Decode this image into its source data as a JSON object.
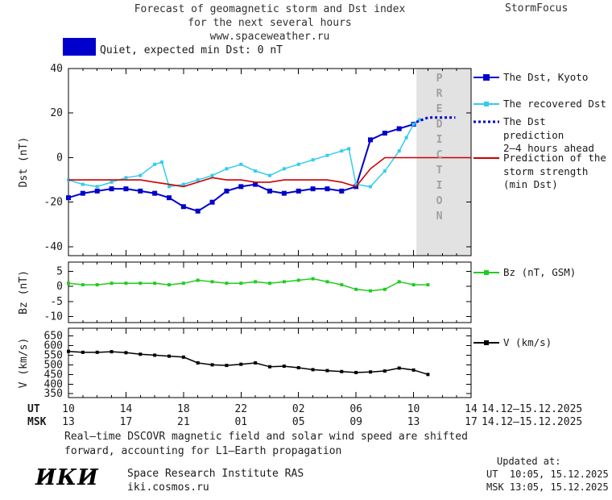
{
  "header": {
    "title_line1": "Forecast of geomagnetic storm and Dst index",
    "title_line2": "for the next several hours",
    "title_line3": "www.spaceweather.ru",
    "brand": "StormFocus"
  },
  "banner": {
    "color": "#0000cc",
    "label": "Quiet, expected min Dst: 0 nT"
  },
  "prediction_band": {
    "label": "PREDICTION",
    "x_start": 24.2,
    "x_end": 28,
    "fill": "#e2e2e2",
    "text_color": "#a0a0a0"
  },
  "legend": {
    "kyoto": "The Dst, Kyoto",
    "recovered": "The recovered Dst",
    "prediction_line1": "The Dst prediction",
    "prediction_line2": "2–4 hours ahead",
    "storm_line1": "Prediction of the",
    "storm_line2": "storm strength",
    "storm_line3": "(min Dst)",
    "bz": "Bz (nT, GSM)",
    "v": "V (km/s)"
  },
  "xaxis": {
    "ut_label": "UT",
    "msk_label": "MSK",
    "tick_hours": [
      0,
      4,
      8,
      12,
      16,
      20,
      24,
      28
    ],
    "ut_ticks": [
      "10",
      "14",
      "18",
      "22",
      "02",
      "06",
      "10",
      "14"
    ],
    "msk_ticks": [
      "13",
      "17",
      "21",
      "01",
      "05",
      "09",
      "13",
      "17"
    ],
    "ut_date": "14.12–15.12.2025",
    "msk_date": "14.12–15.12.2025"
  },
  "chart_data": [
    {
      "type": "line",
      "panel": "dst",
      "ylabel": "Dst (nT)",
      "ylim": [
        -44,
        40
      ],
      "yticks": [
        -40,
        -20,
        0,
        20,
        40
      ],
      "xlim": [
        0,
        28
      ],
      "series": [
        {
          "name": "The Dst, Kyoto",
          "color": "#0000cc",
          "marker": "square",
          "marker_size": 6,
          "width": 2,
          "x": [
            0,
            1,
            2,
            3,
            4,
            5,
            6,
            7,
            8,
            9,
            10,
            11,
            12,
            13,
            14,
            15,
            16,
            17,
            18,
            19,
            20,
            21,
            22,
            23,
            24
          ],
          "y": [
            -18,
            -16,
            -15,
            -14,
            -14,
            -15,
            -16,
            -18,
            -22,
            -24,
            -20,
            -15,
            -13,
            -12,
            -15,
            -16,
            -15,
            -14,
            -14,
            -15,
            -13,
            8,
            11,
            13,
            15
          ]
        },
        {
          "name": "The recovered Dst",
          "color": "#33ccee",
          "marker": "square",
          "marker_size": 4,
          "width": 1.5,
          "x": [
            0,
            1,
            2,
            3,
            4,
            5,
            6,
            6.5,
            7,
            8,
            9,
            10,
            11,
            12,
            13,
            14,
            15,
            16,
            17,
            18,
            19,
            19.5,
            20,
            21,
            22,
            23,
            23.5,
            24,
            24.4
          ],
          "y": [
            -10,
            -12,
            -13,
            -11,
            -9,
            -8,
            -3,
            -2,
            -13,
            -12,
            -10,
            -8,
            -5,
            -3,
            -6,
            -8,
            -5,
            -3,
            -1,
            1,
            3,
            4,
            -12,
            -13,
            -6,
            3,
            9,
            15,
            17
          ]
        },
        {
          "name": "The Dst prediction 2-4 hours ahead",
          "color": "#0000cc",
          "marker": "none",
          "width": 3,
          "dash": "3 3",
          "x": [
            24.2,
            25,
            26.9
          ],
          "y": [
            16,
            18,
            18
          ]
        },
        {
          "name": "Prediction of the storm strength (min Dst)",
          "color": "#cc0000",
          "marker": "none",
          "width": 1.6,
          "x": [
            0,
            1,
            2,
            3,
            4,
            5,
            6,
            7,
            8,
            9,
            10,
            11,
            12,
            13,
            14,
            15,
            16,
            17,
            18,
            19,
            20,
            21,
            22,
            23,
            24,
            25,
            26,
            27,
            28
          ],
          "y": [
            -10,
            -10,
            -10,
            -10,
            -10,
            -10,
            -11,
            -12,
            -13,
            -11,
            -9,
            -10,
            -10,
            -11,
            -11,
            -10,
            -10,
            -10,
            -10,
            -11,
            -13,
            -5,
            0,
            0,
            0,
            0,
            0,
            0,
            0
          ]
        }
      ]
    },
    {
      "type": "line",
      "panel": "bz",
      "ylabel": "Bz (nT)",
      "ylim": [
        -12,
        8
      ],
      "yticks": [
        5,
        0,
        -5,
        -10
      ],
      "xlim": [
        0,
        28
      ],
      "series": [
        {
          "name": "Bz (nT, GSM)",
          "color": "#22cc22",
          "marker": "square",
          "marker_size": 4,
          "width": 1.5,
          "x": [
            0,
            1,
            2,
            3,
            4,
            5,
            6,
            7,
            8,
            9,
            10,
            11,
            12,
            13,
            14,
            15,
            16,
            17,
            18,
            19,
            20,
            21,
            22,
            23,
            24,
            25
          ],
          "y": [
            1,
            0.5,
            0.5,
            1,
            1,
            1,
            1,
            0.5,
            1,
            2,
            1.5,
            1,
            1,
            1.5,
            1,
            1.5,
            2,
            2.5,
            1.5,
            0.5,
            -1,
            -1.5,
            -1,
            1.5,
            0.5,
            0.5
          ]
        }
      ]
    },
    {
      "type": "line",
      "panel": "v",
      "ylabel": "V (km/s)",
      "ylim": [
        330,
        690
      ],
      "yticks": [
        350,
        400,
        450,
        500,
        550,
        600,
        650
      ],
      "xlim": [
        0,
        28
      ],
      "series": [
        {
          "name": "V (km/s)",
          "color": "#000000",
          "marker": "square",
          "marker_size": 4,
          "width": 1.5,
          "x": [
            0,
            1,
            2,
            3,
            4,
            5,
            6,
            7,
            8,
            9,
            10,
            11,
            12,
            13,
            14,
            15,
            16,
            17,
            18,
            19,
            20,
            21,
            22,
            23,
            24,
            25
          ],
          "y": [
            570,
            565,
            565,
            568,
            563,
            555,
            550,
            545,
            540,
            510,
            500,
            497,
            503,
            510,
            490,
            493,
            485,
            475,
            470,
            465,
            460,
            463,
            468,
            483,
            473,
            450
          ]
        }
      ]
    }
  ],
  "footer": {
    "note_line1": "Real–time DSCOVR magnetic field and solar wind speed are shifted",
    "note_line2": "forward, accounting for L1–Earth propagation",
    "logo": "ИКИ",
    "institute": "Space Research Institute RAS",
    "site": "iki.cosmos.ru",
    "updated_label": "Updated at:",
    "updated_ut": "UT  10:05, 15.12.2025",
    "updated_msk": "MSK 13:05, 15.12.2025"
  }
}
